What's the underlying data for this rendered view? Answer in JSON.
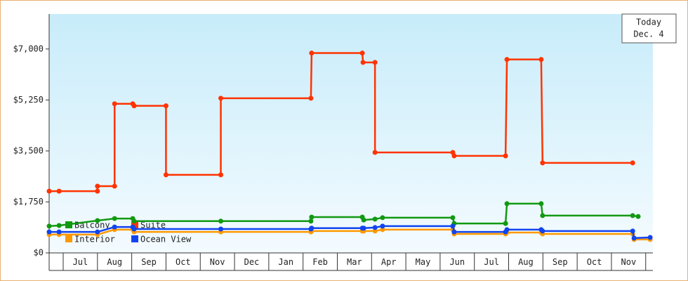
{
  "chart_data": {
    "type": "line",
    "annotation": {
      "lines": [
        "Today",
        "Dec. 4"
      ]
    },
    "legend": "lower left",
    "xlim": [
      -0.41,
      17.21
    ],
    "xticks": [
      {
        "value": 0.5,
        "label": "Jul"
      },
      {
        "value": 1.5,
        "label": "Aug"
      },
      {
        "value": 2.5,
        "label": "Sep"
      },
      {
        "value": 3.5,
        "label": "Oct"
      },
      {
        "value": 4.5,
        "label": "Nov"
      },
      {
        "value": 5.5,
        "label": "Dec"
      },
      {
        "value": 6.5,
        "label": "Jan"
      },
      {
        "value": 7.5,
        "label": "Feb"
      },
      {
        "value": 8.5,
        "label": "Mar"
      },
      {
        "value": 9.5,
        "label": "Apr"
      },
      {
        "value": 10.5,
        "label": "May"
      },
      {
        "value": 11.5,
        "label": "Jun"
      },
      {
        "value": 12.5,
        "label": "Jul"
      },
      {
        "value": 13.5,
        "label": "Aug"
      },
      {
        "value": 14.5,
        "label": "Sep"
      },
      {
        "value": 15.5,
        "label": "Oct"
      },
      {
        "value": 16.5,
        "label": "Nov"
      }
    ],
    "ylim": [
      0,
      8200
    ],
    "yticks": [
      {
        "value": 0,
        "label": "$0"
      },
      {
        "value": 1750,
        "label": "$1,750"
      },
      {
        "value": 3500,
        "label": "$3,500"
      },
      {
        "value": 5250,
        "label": "$5,250"
      },
      {
        "value": 7000,
        "label": "$7,000"
      }
    ],
    "series": [
      {
        "name": "Balcony",
        "color": "#119911",
        "x": [
          -0.41,
          -0.12,
          1.0,
          1.5,
          2.03,
          2.07,
          4.6,
          7.23,
          7.25,
          8.73,
          8.77,
          9.1,
          9.32,
          11.37,
          11.41,
          12.91,
          12.95,
          13.95,
          13.99,
          16.62,
          16.78
        ],
        "values": [
          920,
          940,
          1110,
          1180,
          1180,
          1090,
          1090,
          1090,
          1230,
          1230,
          1130,
          1160,
          1210,
          1210,
          1010,
          1010,
          1690,
          1690,
          1280,
          1280,
          1250
        ]
      },
      {
        "name": "Suite",
        "color": "#ff3300",
        "x": [
          -0.41,
          -0.12,
          1.0,
          1.0,
          1.5,
          1.5,
          2.03,
          2.07,
          3.0,
          3.0,
          4.6,
          4.6,
          7.23,
          7.25,
          8.73,
          8.75,
          9.1,
          9.1,
          11.37,
          11.41,
          12.91,
          12.95,
          13.95,
          13.99,
          16.62
        ],
        "values": [
          2120,
          2120,
          2120,
          2290,
          2290,
          5120,
          5120,
          5050,
          5050,
          2680,
          2680,
          5310,
          5310,
          6860,
          6860,
          6540,
          6540,
          3450,
          3450,
          3330,
          3330,
          6640,
          6640,
          3090,
          3090
        ]
      },
      {
        "name": "Interior",
        "color": "#ff9900",
        "x": [
          -0.41,
          -0.12,
          1.0,
          1.5,
          2.03,
          2.07,
          4.6,
          7.23,
          7.25,
          8.73,
          8.77,
          9.1,
          9.32,
          11.37,
          11.41,
          12.91,
          12.95,
          13.95,
          13.99,
          16.62,
          16.66,
          17.13
        ],
        "values": [
          630,
          630,
          630,
          800,
          800,
          720,
          720,
          720,
          750,
          750,
          750,
          750,
          800,
          800,
          650,
          650,
          700,
          700,
          650,
          650,
          460,
          460
        ]
      },
      {
        "name": "Ocean View",
        "color": "#1144ee",
        "x": [
          -0.41,
          -0.12,
          1.0,
          1.5,
          2.03,
          2.07,
          4.6,
          7.23,
          7.25,
          8.73,
          8.77,
          9.1,
          9.32,
          11.37,
          11.41,
          12.91,
          12.95,
          13.95,
          13.99,
          16.62,
          16.66,
          17.13
        ],
        "values": [
          720,
          720,
          720,
          890,
          890,
          820,
          820,
          820,
          850,
          850,
          850,
          870,
          920,
          920,
          720,
          720,
          800,
          800,
          750,
          750,
          510,
          530
        ]
      }
    ]
  }
}
